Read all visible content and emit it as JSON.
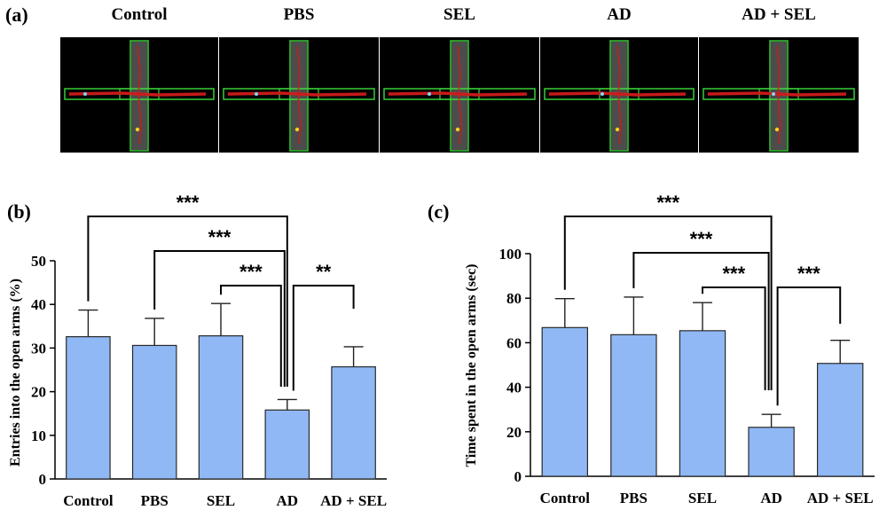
{
  "panels": {
    "a_label": "(a)",
    "b_label": "(b)",
    "c_label": "(c)"
  },
  "maze_groups": [
    "Control",
    "PBS",
    "SEL",
    "AD",
    "AD + SEL"
  ],
  "colors": {
    "bar_fill": "#8fb8f4",
    "bar_stroke": "#2a2a2a",
    "maze_bg": "#000000",
    "maze_outline": "#3ddc3d",
    "track": "#d11a1a",
    "arm_fill": "#8a8a8a"
  },
  "chart_data": [
    {
      "type": "bar",
      "panel": "(b)",
      "categories": [
        "Control",
        "PBS",
        "SEL",
        "AD",
        "AD + SEL"
      ],
      "values": [
        32.6,
        30.6,
        32.8,
        15.8,
        25.7
      ],
      "errors": [
        6.1,
        6.2,
        7.4,
        2.4,
        4.6
      ],
      "ylabel": "Entries into the open arms (%)",
      "xlabel": "",
      "ylim": [
        0,
        50
      ],
      "yticks": [
        "0",
        "10",
        "20",
        "30",
        "40",
        "50"
      ],
      "grid": false,
      "significance": [
        {
          "from": "Control",
          "to": "AD",
          "label": "***"
        },
        {
          "from": "PBS",
          "to": "AD",
          "label": "***"
        },
        {
          "from": "SEL",
          "to": "AD",
          "label": "***"
        },
        {
          "from": "AD",
          "to": "AD + SEL",
          "label": "**"
        }
      ]
    },
    {
      "type": "bar",
      "panel": "(c)",
      "categories": [
        "Control",
        "PBS",
        "SEL",
        "AD",
        "AD + SEL"
      ],
      "values": [
        66.8,
        63.6,
        65.4,
        22.0,
        50.7
      ],
      "errors": [
        13.0,
        16.9,
        12.6,
        5.8,
        10.4
      ],
      "ylabel": "Time spent in the open arms (sec)",
      "xlabel": "",
      "ylim": [
        0,
        100
      ],
      "yticks": [
        "0",
        "20",
        "40",
        "60",
        "80",
        "100"
      ],
      "grid": false,
      "significance": [
        {
          "from": "Control",
          "to": "AD",
          "label": "***"
        },
        {
          "from": "PBS",
          "to": "AD",
          "label": "***"
        },
        {
          "from": "SEL",
          "to": "AD",
          "label": "***"
        },
        {
          "from": "AD",
          "to": "AD + SEL",
          "label": "***"
        }
      ]
    }
  ]
}
